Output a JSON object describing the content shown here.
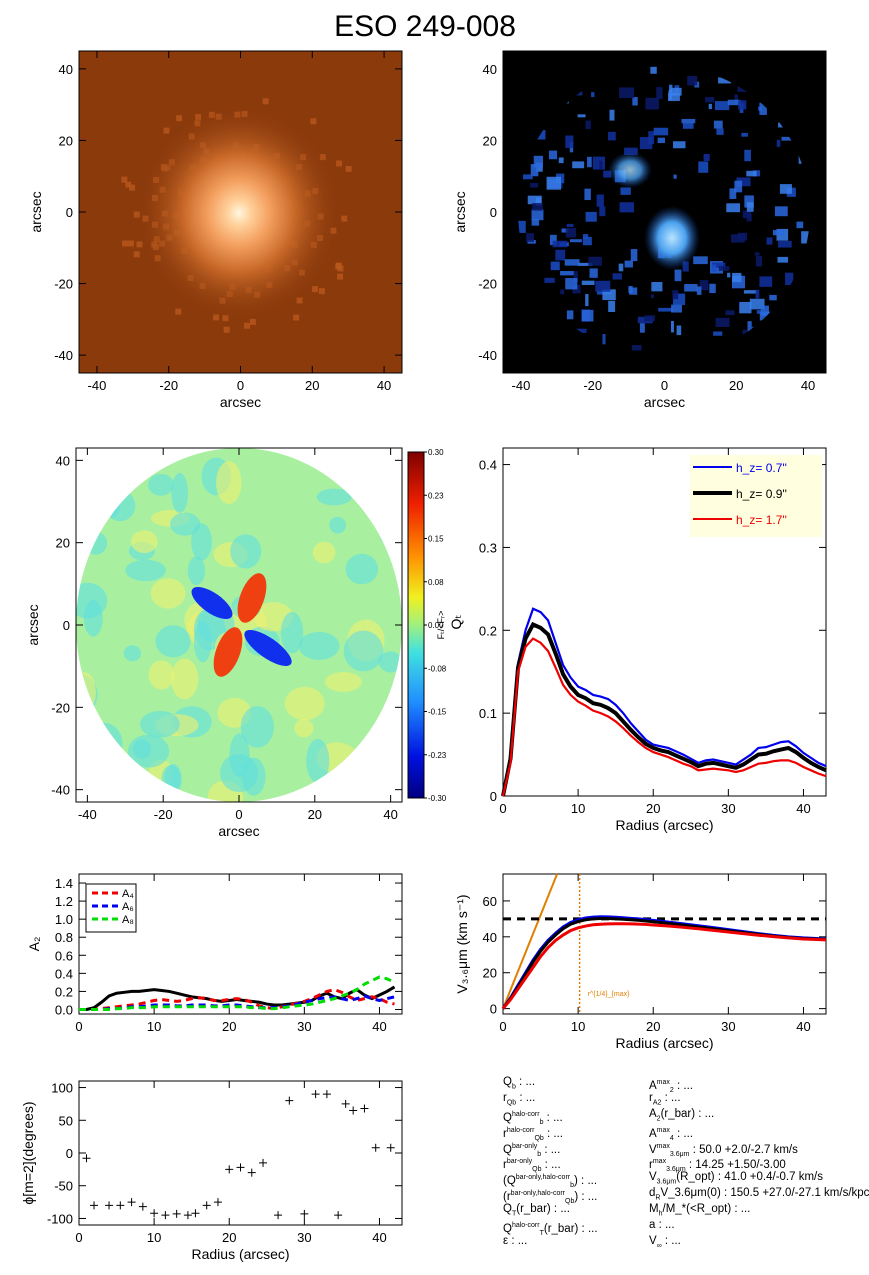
{
  "page_title": "ESO 249-008",
  "colors": {
    "blue": "#0000ee",
    "black": "#000000",
    "red": "#ee0000",
    "green": "#00dd00",
    "orange": "#e08000",
    "legend_bg": "#ffffe0"
  },
  "chart_data": [
    {
      "type": "image",
      "id": "galaxy-image",
      "xlabel": "arcsec",
      "ylabel": "arcsec",
      "xlim": [
        -45,
        45
      ],
      "ylim": [
        -45,
        45
      ],
      "xticks": [
        -40,
        -20,
        0,
        20,
        40
      ],
      "yticks": [
        -40,
        -20,
        0,
        20,
        40
      ],
      "colormap": "copper"
    },
    {
      "type": "image",
      "id": "residual-image",
      "xlabel": "arcsec",
      "ylabel": "arcsec",
      "xlim": [
        -45,
        45
      ],
      "ylim": [
        -45,
        45
      ],
      "xticks": [
        -40,
        -20,
        0,
        20,
        40
      ],
      "yticks": [
        -40,
        -20,
        0,
        20,
        40
      ],
      "colormap": "blue"
    },
    {
      "type": "heatmap",
      "id": "force-ratio-map",
      "xlabel": "arcsec",
      "ylabel": "arcsec",
      "xlim": [
        -43,
        43
      ],
      "ylim": [
        -43,
        43
      ],
      "xticks": [
        -40,
        -20,
        0,
        20,
        40
      ],
      "yticks": [
        -40,
        -20,
        0,
        20,
        40
      ],
      "colorbar_label": "Fₜ/<Fᵣ>",
      "colorbar_ticks": [
        "0.30",
        "0.23",
        "0.15",
        "0.08",
        "0.00",
        "-0.08",
        "-0.15",
        "-0.23",
        "-0.30"
      ],
      "range": [
        -0.3,
        0.3
      ]
    },
    {
      "type": "line",
      "id": "qt-profile",
      "xlabel": "Radius (arcsec)",
      "ylabel": "Qₜ",
      "xlim": [
        0,
        43
      ],
      "ylim": [
        0,
        0.42
      ],
      "xticks": [
        0,
        10,
        20,
        30,
        40
      ],
      "yticks": [
        0.0,
        0.1,
        0.2,
        0.3,
        0.4
      ],
      "x": [
        0,
        1,
        2,
        3,
        4,
        5,
        6,
        7,
        8,
        9,
        10,
        11,
        12,
        13,
        14,
        15,
        16,
        17,
        18,
        19,
        20,
        21,
        22,
        23,
        24,
        25,
        26,
        27,
        28,
        29,
        30,
        31,
        32,
        33,
        34,
        35,
        36,
        37,
        38,
        39,
        40,
        41,
        42,
        43
      ],
      "series": [
        {
          "name": "h_z=  0.7''",
          "color": "#0000ee",
          "values": [
            0,
            0.05,
            0.16,
            0.2,
            0.226,
            0.222,
            0.212,
            0.185,
            0.158,
            0.143,
            0.132,
            0.128,
            0.122,
            0.12,
            0.117,
            0.11,
            0.1,
            0.088,
            0.078,
            0.068,
            0.062,
            0.06,
            0.058,
            0.054,
            0.05,
            0.045,
            0.04,
            0.043,
            0.044,
            0.042,
            0.04,
            0.038,
            0.044,
            0.05,
            0.058,
            0.059,
            0.062,
            0.065,
            0.066,
            0.06,
            0.052,
            0.046,
            0.04,
            0.036
          ]
        },
        {
          "name": "h_z=  0.9''",
          "color": "#000000",
          "values": [
            0,
            0.045,
            0.155,
            0.19,
            0.207,
            0.203,
            0.195,
            0.172,
            0.147,
            0.132,
            0.122,
            0.118,
            0.112,
            0.11,
            0.106,
            0.1,
            0.09,
            0.08,
            0.071,
            0.063,
            0.058,
            0.055,
            0.053,
            0.049,
            0.045,
            0.041,
            0.036,
            0.039,
            0.04,
            0.038,
            0.036,
            0.034,
            0.038,
            0.044,
            0.05,
            0.051,
            0.054,
            0.056,
            0.058,
            0.053,
            0.046,
            0.04,
            0.035,
            0.031
          ]
        },
        {
          "name": "h_z=  1.7''",
          "color": "#ee0000",
          "values": [
            0,
            0.04,
            0.15,
            0.18,
            0.19,
            0.185,
            0.175,
            0.155,
            0.134,
            0.122,
            0.114,
            0.109,
            0.103,
            0.1,
            0.096,
            0.09,
            0.082,
            0.073,
            0.065,
            0.058,
            0.053,
            0.05,
            0.047,
            0.043,
            0.039,
            0.036,
            0.031,
            0.032,
            0.033,
            0.032,
            0.031,
            0.029,
            0.031,
            0.035,
            0.039,
            0.04,
            0.042,
            0.043,
            0.043,
            0.04,
            0.035,
            0.031,
            0.027,
            0.024
          ]
        }
      ],
      "legend_position": "top-right"
    },
    {
      "type": "line",
      "id": "fourier-amplitudes",
      "ylabel": "A₂",
      "xlim": [
        0,
        43
      ],
      "ylim": [
        -0.05,
        1.5
      ],
      "xticks": [
        0,
        10,
        20,
        30,
        40
      ],
      "yticks": [
        "0.0",
        "0.2",
        "0.4",
        "0.6",
        "0.8",
        "1.0",
        "1.2",
        "1.4"
      ],
      "x": [
        0,
        1,
        2,
        3,
        4,
        5,
        6,
        7,
        8,
        9,
        10,
        11,
        12,
        13,
        14,
        15,
        16,
        17,
        18,
        19,
        20,
        21,
        22,
        23,
        24,
        25,
        26,
        27,
        28,
        29,
        30,
        31,
        32,
        33,
        34,
        35,
        36,
        37,
        38,
        39,
        40,
        41,
        42
      ],
      "series": [
        {
          "name": "A₂",
          "color": "#000000",
          "style": "solid",
          "values": [
            0,
            0,
            0.02,
            0.08,
            0.15,
            0.18,
            0.19,
            0.2,
            0.2,
            0.21,
            0.22,
            0.21,
            0.2,
            0.18,
            0.16,
            0.14,
            0.13,
            0.12,
            0.1,
            0.09,
            0.1,
            0.11,
            0.1,
            0.09,
            0.08,
            0.06,
            0.05,
            0.05,
            0.06,
            0.07,
            0.08,
            0.1,
            0.15,
            0.18,
            0.14,
            0.12,
            0.18,
            0.22,
            0.16,
            0.12,
            0.16,
            0.2,
            0.25
          ]
        },
        {
          "name": "A₄",
          "color": "#ee0000",
          "style": "dashed",
          "values": [
            0,
            0,
            0,
            0.01,
            0.02,
            0.03,
            0.04,
            0.05,
            0.06,
            0.08,
            0.1,
            0.11,
            0.1,
            0.09,
            0.1,
            0.12,
            0.13,
            0.12,
            0.1,
            0.1,
            0.11,
            0.12,
            0.11,
            0.08,
            0.04,
            0.02,
            0.01,
            0.03,
            0.05,
            0.07,
            0.09,
            0.12,
            0.16,
            0.2,
            0.22,
            0.19,
            0.14,
            0.1,
            0.12,
            0.14,
            0.12,
            0.08,
            0.06
          ]
        },
        {
          "name": "A₆",
          "color": "#0000ee",
          "style": "dashed",
          "values": [
            0,
            0,
            0,
            0,
            0.01,
            0.01,
            0.02,
            0.03,
            0.03,
            0.04,
            0.05,
            0.05,
            0.05,
            0.04,
            0.04,
            0.05,
            0.05,
            0.05,
            0.04,
            0.04,
            0.05,
            0.05,
            0.04,
            0.03,
            0.02,
            0.02,
            0.02,
            0.03,
            0.04,
            0.06,
            0.08,
            0.1,
            0.12,
            0.13,
            0.14,
            0.12,
            0.1,
            0.12,
            0.15,
            0.12,
            0.1,
            0.12,
            0.14
          ]
        },
        {
          "name": "A₈",
          "color": "#00dd00",
          "style": "dashed",
          "values": [
            0,
            0,
            0,
            0,
            0,
            0.01,
            0.01,
            0.02,
            0.02,
            0.02,
            0.03,
            0.03,
            0.03,
            0.03,
            0.03,
            0.03,
            0.03,
            0.03,
            0.03,
            0.03,
            0.03,
            0.03,
            0.03,
            0.02,
            0.02,
            0.01,
            0.01,
            0.02,
            0.03,
            0.04,
            0.05,
            0.06,
            0.08,
            0.1,
            0.12,
            0.15,
            0.18,
            0.22,
            0.28,
            0.32,
            0.36,
            0.34,
            0.3
          ]
        }
      ],
      "legend_position": "top-left"
    },
    {
      "type": "line",
      "id": "rotation-curve",
      "xlabel": "Radius (arcsec)",
      "ylabel": "V₃.₆μm (km s⁻¹)",
      "xlim": [
        0,
        43
      ],
      "ylim": [
        -3,
        75
      ],
      "xticks": [
        0,
        10,
        20,
        30,
        40
      ],
      "yticks": [
        0,
        20,
        40,
        60
      ],
      "x": [
        0,
        1,
        2,
        3,
        4,
        5,
        6,
        7,
        8,
        9,
        10,
        11,
        12,
        13,
        14,
        15,
        16,
        17,
        18,
        19,
        20,
        22,
        24,
        26,
        28,
        30,
        32,
        34,
        36,
        38,
        40,
        43
      ],
      "series": [
        {
          "color": "#0000ee",
          "values": [
            0,
            6,
            13,
            20,
            27,
            33,
            38,
            42,
            45.5,
            48,
            49.5,
            50.5,
            51,
            51.2,
            51.1,
            50.9,
            50.6,
            50.3,
            50,
            49.6,
            49.2,
            48.2,
            47.2,
            46.2,
            45.1,
            44,
            42.9,
            41.8,
            40.8,
            40,
            39.4,
            38.8
          ]
        },
        {
          "color": "#000000",
          "values": [
            0,
            5.5,
            12,
            19,
            26,
            32,
            37,
            41,
            44.5,
            47,
            48.5,
            49.5,
            50,
            50.2,
            50.2,
            50,
            49.8,
            49.5,
            49.2,
            48.8,
            48.4,
            47.5,
            46.5,
            45.5,
            44.5,
            43.4,
            42.4,
            41.4,
            40.4,
            39.6,
            39,
            38.5
          ]
        },
        {
          "color": "#ee0000",
          "values": [
            0,
            5,
            11,
            17,
            23,
            29,
            34,
            38,
            41,
            43.5,
            45,
            46,
            46.7,
            47,
            47.2,
            47.3,
            47.3,
            47.2,
            47.1,
            46.9,
            46.6,
            46,
            45.3,
            44.5,
            43.6,
            42.7,
            41.8,
            40.9,
            40.1,
            39.4,
            38.8,
            38.3
          ]
        }
      ],
      "reference_line": {
        "y": 50,
        "style": "dashed",
        "color": "#000000"
      },
      "solid_body_line": {
        "x": [
          0,
          7.2
        ],
        "y": [
          0,
          75
        ],
        "color": "#e08000"
      },
      "vertical_marker": {
        "x": 10.2,
        "color": "#e08000"
      },
      "annotation": "r^{1/4}_{max}"
    },
    {
      "type": "scatter",
      "id": "phase-angle",
      "xlabel": "Radius (arcsec)",
      "ylabel": "ϕ[m=2](degrees)",
      "xlim": [
        0,
        43
      ],
      "ylim": [
        -110,
        110
      ],
      "xticks": [
        0,
        10,
        20,
        30,
        40
      ],
      "yticks": [
        -100,
        -50,
        0,
        50,
        100
      ],
      "marker": "+",
      "points": [
        [
          1,
          -8
        ],
        [
          2,
          -80
        ],
        [
          4,
          -80
        ],
        [
          5.5,
          -80
        ],
        [
          7,
          -75
        ],
        [
          8.5,
          -82
        ],
        [
          10,
          -92
        ],
        [
          11.5,
          -95
        ],
        [
          13,
          -93
        ],
        [
          14.5,
          -95
        ],
        [
          15.5,
          -92
        ],
        [
          17,
          -80
        ],
        [
          18.5,
          -75
        ],
        [
          20,
          -25
        ],
        [
          21.5,
          -22
        ],
        [
          23,
          -30
        ],
        [
          24.5,
          -15
        ],
        [
          26.5,
          -95
        ],
        [
          28,
          80
        ],
        [
          30,
          -93
        ],
        [
          31.5,
          90
        ],
        [
          33,
          90
        ],
        [
          34.5,
          -95
        ],
        [
          35.5,
          75
        ],
        [
          36.5,
          65
        ],
        [
          38,
          68
        ],
        [
          39.5,
          8
        ],
        [
          41.5,
          8
        ]
      ]
    }
  ],
  "params": {
    "left": [
      {
        "sym": "Q",
        "sub": "b",
        "sup": "",
        "rest": " : ..."
      },
      {
        "sym": "r",
        "sub": "Qb",
        "sup": "",
        "rest": " : ..."
      },
      {
        "sym": "Q",
        "sub": "b",
        "sup": "halo-corr",
        "rest": " : ..."
      },
      {
        "sym": "r",
        "sub": "Qb",
        "sup": "halo-corr",
        "rest": " : ..."
      },
      {
        "sym": "Q",
        "sub": "b",
        "sup": "bar-only",
        "rest": " : ..."
      },
      {
        "sym": "r",
        "sub": "Qb",
        "sup": "bar-only",
        "rest": " : ..."
      },
      {
        "sym": "(Q",
        "sub": "b",
        "sup": "bar-only,halo-corr",
        "rest": ") : ..."
      },
      {
        "sym": "(r",
        "sub": "Qb",
        "sup": "bar-only,halo-corr",
        "rest": ") : ..."
      },
      {
        "sym": "Q",
        "sub": "T",
        "sup": "",
        "rest": "(r_bar) : ..."
      },
      {
        "sym": "Q",
        "sub": "T",
        "sup": "halo-corr",
        "rest": "(r_bar) : ..."
      },
      {
        "sym": "ε",
        "sub": "",
        "sup": "",
        "rest": " : ..."
      }
    ],
    "right": [
      {
        "sym": "A",
        "sub": "2",
        "sup": "max",
        "rest": " : ..."
      },
      {
        "sym": "r",
        "sub": "A2",
        "sup": "",
        "rest": " : ..."
      },
      {
        "sym": "A",
        "sub": "2",
        "sup": "",
        "rest": "(r_bar) : ..."
      },
      {
        "sym": "A",
        "sub": "4",
        "sup": "max",
        "rest": " : ..."
      },
      {
        "sym": "V",
        "sub": "3.6μm",
        "sup": "max",
        "rest": " :  50.0 +2.0/-2.7 km/s"
      },
      {
        "sym": "r",
        "sub": "3.6μm",
        "sup": "max",
        "rest": " :  14.25 +1.50/-3.00"
      },
      {
        "sym": "V",
        "sub": "3.6μm",
        "sup": "",
        "rest": "(R_opt) :  41.0 +0.4/-0.7 km/s"
      },
      {
        "sym": "d",
        "sub": "R",
        "sup": "",
        "rest": "V_3.6μm(0) :  150.5 +27.0/-27.1 km/s/kpc"
      },
      {
        "sym": "M",
        "sub": "h",
        "sup": "",
        "rest": "/M_*(<R_opt) : ..."
      },
      {
        "sym": "a",
        "sub": "",
        "sup": "",
        "rest": " : ..."
      },
      {
        "sym": "V",
        "sub": "∞",
        "sup": "",
        "rest": " : ..."
      }
    ]
  }
}
